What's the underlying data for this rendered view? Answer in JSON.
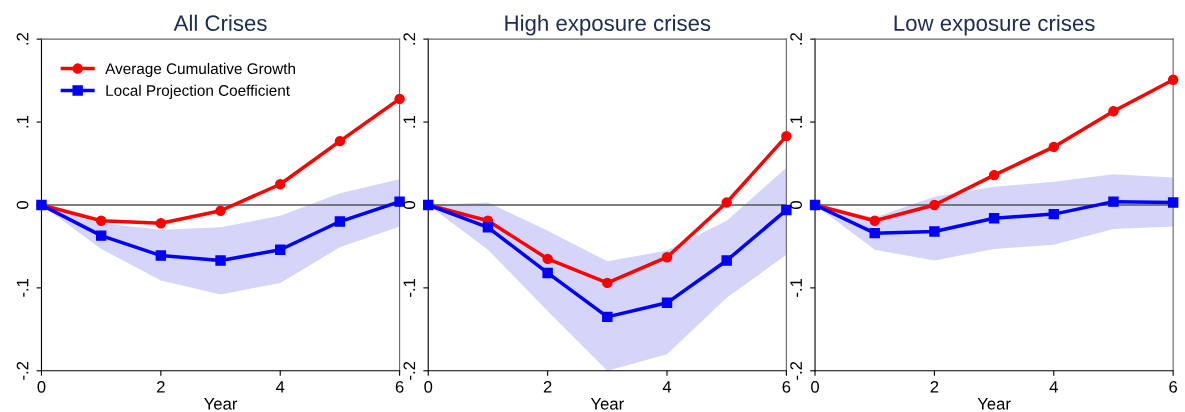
{
  "chart_data": [
    {
      "type": "line",
      "title": "All Crises",
      "xlabel": "Year",
      "x": [
        0,
        1,
        2,
        3,
        4,
        5,
        6
      ],
      "xlim": [
        0,
        6
      ],
      "xticks": [
        0,
        2,
        4,
        6
      ],
      "ylim": [
        -0.2,
        0.2
      ],
      "yticks": [
        {
          "value": -0.2,
          "label": "-.2"
        },
        {
          "value": -0.1,
          "label": "-.1"
        },
        0,
        {
          "value": 0.1,
          "label": ".1"
        },
        {
          "value": 0.2,
          "label": ".2"
        }
      ],
      "legend": "top left",
      "grid": false,
      "line_style": "solid",
      "ref_lines": [
        {
          "axis": "y",
          "value": 0,
          "color": "#555555"
        }
      ],
      "series": [
        {
          "name": "Average Cumulative Growth",
          "color": "#ff0000",
          "marker": "circle",
          "values": [
            0,
            -0.019,
            -0.022,
            -0.007,
            0.025,
            0.077,
            0.128
          ]
        },
        {
          "name": "Local Projection Coefficient",
          "color": "#0000ff",
          "marker": "square",
          "values": [
            0,
            -0.037,
            -0.061,
            -0.067,
            -0.054,
            -0.02,
            0.004
          ],
          "lower": [
            0,
            -0.053,
            -0.091,
            -0.108,
            -0.094,
            -0.051,
            -0.026
          ],
          "upper": [
            0,
            -0.022,
            -0.03,
            -0.027,
            -0.013,
            0.014,
            0.031
          ]
        }
      ]
    },
    {
      "type": "line",
      "title": "High exposure crises",
      "xlabel": "Year",
      "x": [
        0,
        1,
        2,
        3,
        4,
        5,
        6
      ],
      "xlim": [
        0,
        6
      ],
      "xticks": [
        0,
        2,
        4,
        6
      ],
      "ylim": [
        -0.2,
        0.2
      ],
      "yticks": [
        {
          "value": -0.2,
          "label": "-.2"
        },
        {
          "value": -0.1,
          "label": "-.1"
        },
        0,
        {
          "value": 0.1,
          "label": ".1"
        },
        {
          "value": 0.2,
          "label": ".2"
        }
      ],
      "grid": false,
      "line_style": "solid",
      "ref_lines": [
        {
          "axis": "y",
          "value": 0,
          "color": "#555555"
        }
      ],
      "series": [
        {
          "color": "#ff0000",
          "marker": "circle",
          "values": [
            0,
            -0.019,
            -0.065,
            -0.094,
            -0.063,
            0.003,
            0.083
          ]
        },
        {
          "color": "#0000ff",
          "marker": "square",
          "values": [
            0,
            -0.027,
            -0.082,
            -0.135,
            -0.118,
            -0.067,
            -0.006
          ],
          "lower": [
            0,
            -0.054,
            -0.128,
            -0.2,
            -0.18,
            -0.112,
            -0.06
          ],
          "upper": [
            0,
            0.003,
            -0.031,
            -0.068,
            -0.055,
            -0.019,
            0.045
          ]
        }
      ]
    },
    {
      "type": "line",
      "title": "Low exposure crises",
      "xlabel": "Year",
      "x": [
        0,
        1,
        2,
        3,
        4,
        5,
        6
      ],
      "xlim": [
        0,
        6
      ],
      "xticks": [
        0,
        2,
        4,
        6
      ],
      "ylim": [
        -0.2,
        0.2
      ],
      "yticks": [
        {
          "value": -0.2,
          "label": "-.2"
        },
        {
          "value": -0.1,
          "label": "-.1"
        },
        0,
        {
          "value": 0.1,
          "label": ".1"
        },
        {
          "value": 0.2,
          "label": ".2"
        }
      ],
      "grid": false,
      "line_style": "solid",
      "ref_lines": [
        {
          "axis": "y",
          "value": 0,
          "color": "#555555"
        }
      ],
      "series": [
        {
          "color": "#ff0000",
          "marker": "circle",
          "values": [
            0,
            -0.019,
            0,
            0.036,
            0.07,
            0.113,
            0.151
          ]
        },
        {
          "color": "#0000ff",
          "marker": "square",
          "values": [
            0,
            -0.034,
            -0.032,
            -0.016,
            -0.011,
            0.004,
            0.003
          ],
          "lower": [
            0,
            -0.054,
            -0.067,
            -0.053,
            -0.048,
            -0.029,
            -0.026
          ],
          "upper": [
            0,
            -0.015,
            0.01,
            0.022,
            0.028,
            0.037,
            0.033
          ]
        }
      ]
    }
  ]
}
